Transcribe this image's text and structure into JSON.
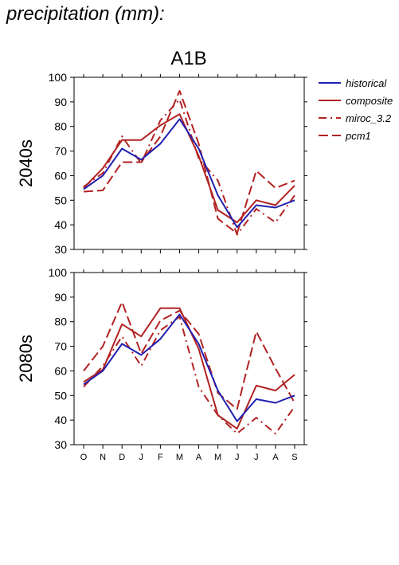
{
  "page_title": "precipitation (mm):",
  "scenario_title": "A1B",
  "legend": [
    {
      "label": "historical",
      "color": "#2020b0",
      "dash": "solid"
    },
    {
      "label": "composite",
      "color": "#b22222",
      "dash": "solid"
    },
    {
      "label": "miroc_3.2",
      "color": "#b22222",
      "dash": "dashdot"
    },
    {
      "label": "pcm1",
      "color": "#b22222",
      "dash": "dashed"
    }
  ],
  "chart_data": [
    {
      "type": "line",
      "ylabel": "2040s",
      "ylim": [
        30,
        100
      ],
      "yticks": [
        30,
        40,
        50,
        60,
        70,
        80,
        90,
        100
      ],
      "categories": [
        "O",
        "N",
        "D",
        "J",
        "F",
        "M",
        "A",
        "M",
        "J",
        "J",
        "A",
        "S"
      ],
      "show_xticklabels": false,
      "series": [
        {
          "name": "historical",
          "values": [
            54.5,
            60,
            71,
            66.5,
            73,
            83,
            71,
            52,
            39,
            48,
            47,
            50
          ]
        },
        {
          "name": "composite",
          "values": [
            55,
            63,
            74.5,
            74.5,
            80.5,
            85,
            68,
            46,
            41,
            50,
            48,
            56
          ]
        },
        {
          "name": "miroc_3.2",
          "values": [
            55.5,
            61,
            76,
            65,
            82.5,
            91,
            67,
            58,
            36,
            46.5,
            41,
            52
          ]
        },
        {
          "name": "pcm1",
          "values": [
            53.5,
            54,
            65.5,
            65.5,
            76,
            94.5,
            73,
            42.5,
            36.5,
            62,
            55,
            58
          ]
        }
      ]
    },
    {
      "type": "line",
      "ylabel": "2080s",
      "ylim": [
        30,
        100
      ],
      "yticks": [
        30,
        40,
        50,
        60,
        70,
        80,
        90,
        100
      ],
      "categories": [
        "O",
        "N",
        "D",
        "J",
        "F",
        "M",
        "A",
        "M",
        "J",
        "J",
        "A",
        "S"
      ],
      "show_xticklabels": true,
      "series": [
        {
          "name": "historical",
          "values": [
            54.5,
            60,
            71,
            66.5,
            73,
            83,
            71,
            52,
            39.5,
            48.5,
            47,
            50
          ]
        },
        {
          "name": "composite",
          "values": [
            55.5,
            60.5,
            79,
            74,
            85.5,
            85.5,
            69,
            42,
            36.5,
            54,
            52,
            58.5
          ]
        },
        {
          "name": "miroc_3.2",
          "values": [
            53.5,
            62,
            74,
            62,
            76.5,
            82,
            53.5,
            42,
            34.5,
            41,
            34.5,
            45.5
          ]
        },
        {
          "name": "pcm1",
          "values": [
            60,
            70,
            88,
            67,
            80.5,
            84.5,
            75,
            51,
            44.5,
            76,
            61,
            47
          ]
        }
      ]
    }
  ]
}
